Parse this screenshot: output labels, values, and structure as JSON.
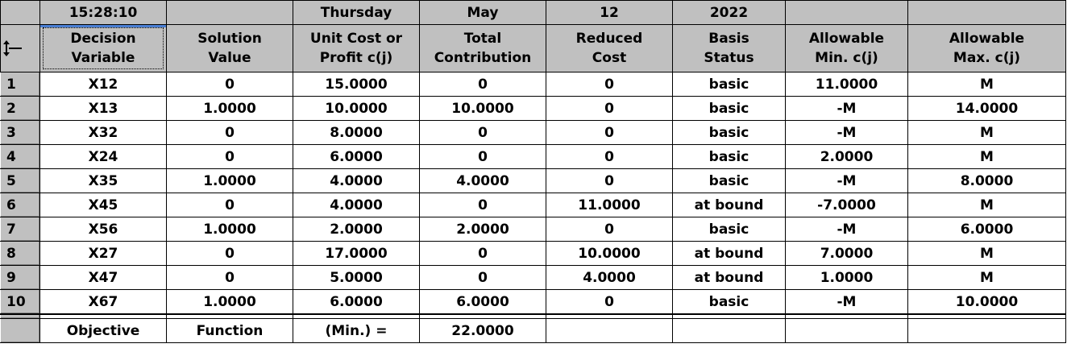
{
  "topbar": {
    "time": "15:28:10",
    "blank": "",
    "weekday": "Thursday",
    "month": "May",
    "day": "12",
    "year": "2022"
  },
  "headers": [
    [
      "Decision",
      "Variable"
    ],
    [
      "Solution",
      "Value"
    ],
    [
      "Unit Cost or",
      "Profit c(j)"
    ],
    [
      "Total",
      "Contribution"
    ],
    [
      "Reduced",
      "Cost"
    ],
    [
      "Basis",
      "Status"
    ],
    [
      "Allowable",
      "Min. c(j)"
    ],
    [
      "Allowable",
      "Max. c(j)"
    ]
  ],
  "rows": [
    {
      "num": "1",
      "cells": [
        "X12",
        "0",
        "15.0000",
        "0",
        "0",
        "basic",
        "11.0000",
        "M"
      ]
    },
    {
      "num": "2",
      "cells": [
        "X13",
        "1.0000",
        "10.0000",
        "10.0000",
        "0",
        "basic",
        "-M",
        "14.0000"
      ]
    },
    {
      "num": "3",
      "cells": [
        "X32",
        "0",
        "8.0000",
        "0",
        "0",
        "basic",
        "-M",
        "M"
      ]
    },
    {
      "num": "4",
      "cells": [
        "X24",
        "0",
        "6.0000",
        "0",
        "0",
        "basic",
        "2.0000",
        "M"
      ]
    },
    {
      "num": "5",
      "cells": [
        "X35",
        "1.0000",
        "4.0000",
        "4.0000",
        "0",
        "basic",
        "-M",
        "8.0000"
      ]
    },
    {
      "num": "6",
      "cells": [
        "X45",
        "0",
        "4.0000",
        "0",
        "11.0000",
        "at bound",
        "-7.0000",
        "M"
      ]
    },
    {
      "num": "7",
      "cells": [
        "X56",
        "1.0000",
        "2.0000",
        "2.0000",
        "0",
        "basic",
        "-M",
        "6.0000"
      ]
    },
    {
      "num": "8",
      "cells": [
        "X27",
        "0",
        "17.0000",
        "0",
        "10.0000",
        "at bound",
        "7.0000",
        "M"
      ]
    },
    {
      "num": "9",
      "cells": [
        "X47",
        "0",
        "5.0000",
        "0",
        "4.0000",
        "at bound",
        "1.0000",
        "M"
      ]
    },
    {
      "num": "10",
      "cells": [
        "X67",
        "1.0000",
        "6.0000",
        "6.0000",
        "0",
        "basic",
        "-M",
        "10.0000"
      ]
    }
  ],
  "footer": {
    "c1": "Objective",
    "c2": "Function",
    "c3": "(Min.) =",
    "c4": "22.0000",
    "c5": "",
    "c6": "",
    "c7": "",
    "c8": ""
  },
  "icons": {
    "corner": "row-resize-cursor-icon"
  }
}
